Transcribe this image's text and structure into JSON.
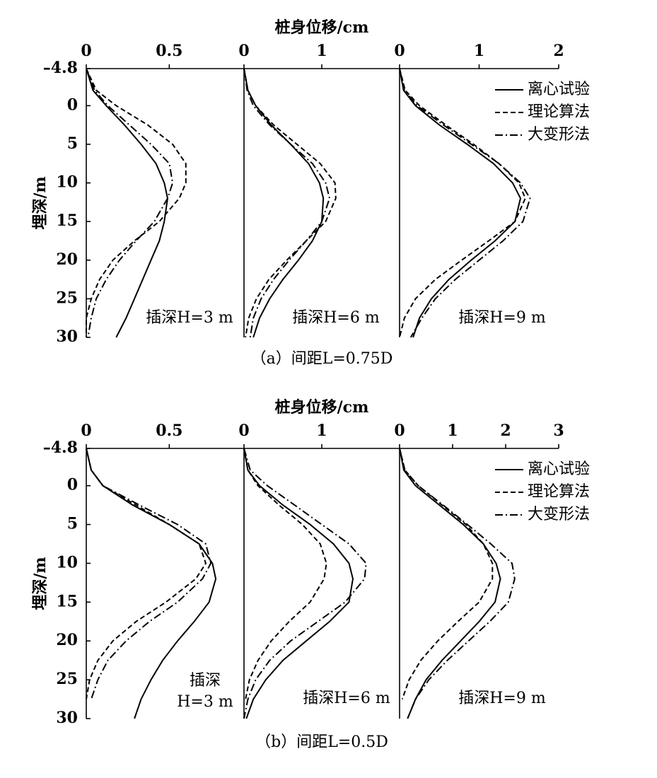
{
  "chart_data": [
    {
      "type": "line",
      "xlabel": "桩身位移/cm",
      "ylabel": "埋深/m",
      "caption": "（a）间距L=0.75D",
      "ylim": [
        -4.8,
        30
      ],
      "yticks": [
        {
          "value": -4.8,
          "label": "–4.8"
        },
        0,
        5,
        10,
        15,
        20,
        25,
        30
      ],
      "legend": "upper right",
      "series": [
        {
          "name": "离心试验",
          "color": "#000000",
          "style": "solid"
        },
        {
          "name": "理论算法",
          "color": "#000000",
          "style": "dashed"
        },
        {
          "name": "大变形法",
          "color": "#000000",
          "style": "dashdot"
        }
      ],
      "depth": [
        -4.8,
        -2,
        0,
        2.5,
        5,
        7.5,
        10,
        12,
        15,
        17.5,
        20,
        22.5,
        25,
        27.5,
        30
      ],
      "subplots": [
        {
          "annotation": [
            "插深H=3 m"
          ],
          "xlim": [
            0,
            0.95
          ],
          "xticks": [
            0,
            0.5
          ],
          "values": [
            [
              0,
              0.04,
              0.12,
              0.23,
              0.33,
              0.42,
              0.47,
              0.49,
              0.47,
              0.44,
              0.39,
              0.34,
              0.29,
              0.24,
              0.18
            ],
            [
              0,
              0.06,
              0.18,
              0.37,
              0.52,
              0.6,
              0.6,
              0.56,
              0.44,
              0.29,
              0.16,
              0.08,
              0.03,
              0,
              0
            ],
            [
              0,
              0.05,
              0.13,
              0.26,
              0.39,
              0.5,
              0.52,
              0.49,
              0.41,
              0.3,
              0.2,
              0.12,
              0.06,
              0.03,
              0.01
            ]
          ]
        },
        {
          "annotation": [
            "插深H=6 m"
          ],
          "xlim": [
            0,
            2
          ],
          "xticks": [
            0,
            1
          ],
          "values": [
            [
              0,
              0.05,
              0.15,
              0.35,
              0.6,
              0.83,
              0.97,
              1.02,
              1.0,
              0.88,
              0.7,
              0.5,
              0.33,
              0.2,
              0.12
            ],
            [
              0,
              0.05,
              0.15,
              0.38,
              0.68,
              0.98,
              1.17,
              1.18,
              1.05,
              0.8,
              0.55,
              0.32,
              0.16,
              0.06,
              0.02
            ],
            [
              0,
              0.04,
              0.12,
              0.33,
              0.6,
              0.88,
              1.05,
              1.1,
              1.0,
              0.8,
              0.58,
              0.38,
              0.22,
              0.12,
              0.08
            ]
          ]
        },
        {
          "annotation": [
            "插深H=9 m"
          ],
          "xlim": [
            0,
            2
          ],
          "xticks": [
            0,
            1,
            2
          ],
          "values": [
            [
              0,
              0.05,
              0.2,
              0.5,
              0.85,
              1.18,
              1.42,
              1.52,
              1.45,
              1.2,
              0.9,
              0.62,
              0.4,
              0.25,
              0.17
            ],
            [
              0,
              0.07,
              0.25,
              0.58,
              0.93,
              1.25,
              1.5,
              1.58,
              1.45,
              1.12,
              0.78,
              0.45,
              0.2,
              0.06,
              0
            ],
            [
              0,
              0.06,
              0.22,
              0.55,
              0.9,
              1.25,
              1.52,
              1.64,
              1.55,
              1.3,
              1.0,
              0.7,
              0.45,
              0.28,
              0.14
            ]
          ]
        }
      ]
    },
    {
      "type": "line",
      "xlabel": "桩身位移/cm",
      "ylabel": "埋深/m",
      "caption": "（b）间距L=0.5D",
      "ylim": [
        -4.8,
        30
      ],
      "yticks": [
        {
          "value": -4.8,
          "label": "–4.8"
        },
        0,
        5,
        10,
        15,
        20,
        25,
        30
      ],
      "legend": "upper right",
      "series": [
        {
          "name": "离心试验",
          "color": "#000000",
          "style": "solid"
        },
        {
          "name": "理论算法",
          "color": "#000000",
          "style": "dashed"
        },
        {
          "name": "大变形法",
          "color": "#000000",
          "style": "dashdot"
        }
      ],
      "depth": [
        -4.8,
        -2,
        0,
        2.5,
        5,
        7.5,
        10,
        12,
        15,
        17.5,
        20,
        22.5,
        25,
        27.5,
        30
      ],
      "subplots": [
        {
          "annotation": [
            "插深",
            "H=3 m"
          ],
          "xlim": [
            0,
            0.95
          ],
          "xticks": [
            0,
            0.5
          ],
          "values": [
            [
              0,
              0.03,
              0.1,
              0.28,
              0.5,
              0.68,
              0.76,
              0.78,
              0.74,
              0.65,
              0.55,
              0.46,
              0.39,
              0.33,
              0.29
            ],
            [
              0,
              0.03,
              0.1,
              0.3,
              0.5,
              0.68,
              0.72,
              0.66,
              0.48,
              0.3,
              0.16,
              0.07,
              0.02,
              0,
              null
            ],
            [
              0,
              0.03,
              0.1,
              0.32,
              0.55,
              0.72,
              0.75,
              0.7,
              0.55,
              0.38,
              0.24,
              0.13,
              0.07,
              0.03,
              null
            ]
          ]
        },
        {
          "annotation": [
            "插深H=6 m"
          ],
          "xlim": [
            0,
            2
          ],
          "xticks": [
            0,
            1
          ],
          "values": [
            [
              0,
              0.05,
              0.2,
              0.5,
              0.85,
              1.15,
              1.35,
              1.4,
              1.35,
              1.1,
              0.8,
              0.5,
              0.28,
              0.12,
              0.03
            ],
            [
              0,
              0.05,
              0.18,
              0.45,
              0.75,
              0.98,
              1.06,
              1.03,
              0.85,
              0.58,
              0.35,
              0.18,
              0.07,
              0.02,
              null
            ],
            [
              0,
              0.08,
              0.3,
              0.65,
              1.0,
              1.35,
              1.57,
              1.55,
              1.3,
              0.95,
              0.6,
              0.33,
              0.15,
              0.05,
              0
            ]
          ]
        },
        {
          "annotation": [
            "插深H=9 m"
          ],
          "xlim": [
            0,
            3
          ],
          "xticks": [
            0,
            1,
            2,
            3
          ],
          "values": [
            [
              0,
              0.08,
              0.3,
              0.75,
              1.2,
              1.58,
              1.82,
              1.9,
              1.8,
              1.5,
              1.15,
              0.8,
              0.5,
              0.3,
              0.15
            ],
            [
              0,
              0.1,
              0.35,
              0.8,
              1.25,
              1.58,
              1.75,
              1.75,
              1.5,
              1.1,
              0.72,
              0.4,
              0.18,
              0.05,
              null
            ],
            [
              0,
              0.1,
              0.35,
              0.82,
              1.28,
              1.72,
              2.12,
              2.17,
              2.05,
              1.7,
              1.3,
              0.9,
              0.55,
              0.3,
              0.15
            ]
          ]
        }
      ]
    }
  ]
}
